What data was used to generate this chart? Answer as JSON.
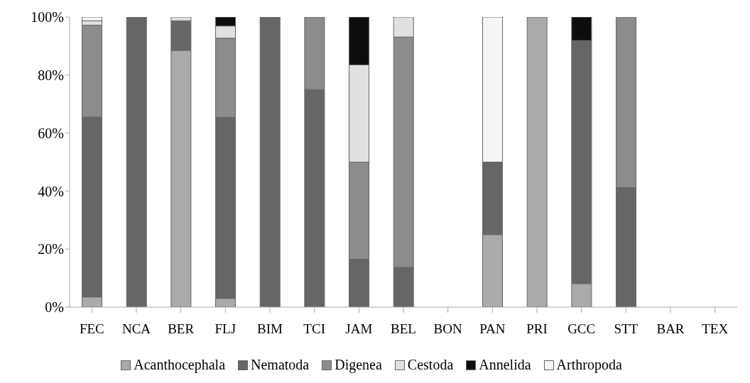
{
  "chart_data": {
    "type": "bar",
    "stacked": true,
    "categories": [
      "FEC",
      "NCA",
      "BER",
      "FLJ",
      "BIM",
      "TCI",
      "JAM",
      "BEL",
      "BON",
      "PAN",
      "PRI",
      "GCC",
      "STT",
      "BAR",
      "TEX"
    ],
    "series": [
      {
        "name": "Acanthocephala",
        "color": "#aaaaaa",
        "values": [
          3.5,
          0,
          88.5,
          3,
          0,
          0,
          0,
          0,
          null,
          25,
          100,
          8.1,
          0,
          null,
          null
        ]
      },
      {
        "name": "Nematoda",
        "color": "#666666",
        "values": [
          62,
          100,
          10.2,
          62.4,
          100,
          75,
          16.5,
          13.7,
          null,
          25,
          0,
          83.8,
          41.2,
          null,
          null
        ]
      },
      {
        "name": "Digenea",
        "color": "#8c8c8c",
        "values": [
          31.7,
          0,
          0,
          27.3,
          0,
          25,
          33.5,
          79.4,
          null,
          0,
          0,
          0,
          58.8,
          null,
          null
        ]
      },
      {
        "name": "Cestoda",
        "color": "#e0e0e0",
        "values": [
          1.5,
          0,
          1.3,
          4.2,
          0,
          0,
          33.5,
          6.9,
          null,
          0,
          0,
          0,
          0,
          null,
          null
        ]
      },
      {
        "name": "Annelida",
        "color": "#0d0d0d",
        "values": [
          0,
          0,
          0,
          3.1,
          0,
          0,
          16.5,
          0,
          null,
          0,
          0,
          8.1,
          0,
          null,
          null
        ]
      },
      {
        "name": "Arthropoda",
        "color": "#f5f5f5",
        "values": [
          1.3,
          0,
          0,
          0,
          0,
          0,
          0,
          0,
          null,
          50,
          0,
          0,
          0,
          null,
          null
        ]
      }
    ],
    "ylim": [
      0,
      100
    ],
    "yticks": [
      {
        "value": 0,
        "label": "0%"
      },
      {
        "value": 20,
        "label": "20%"
      },
      {
        "value": 40,
        "label": "40%"
      },
      {
        "value": 60,
        "label": "60%"
      },
      {
        "value": 80,
        "label": "80%"
      },
      {
        "value": 100,
        "label": "100%"
      }
    ],
    "grid": false,
    "legend": "bottom"
  }
}
